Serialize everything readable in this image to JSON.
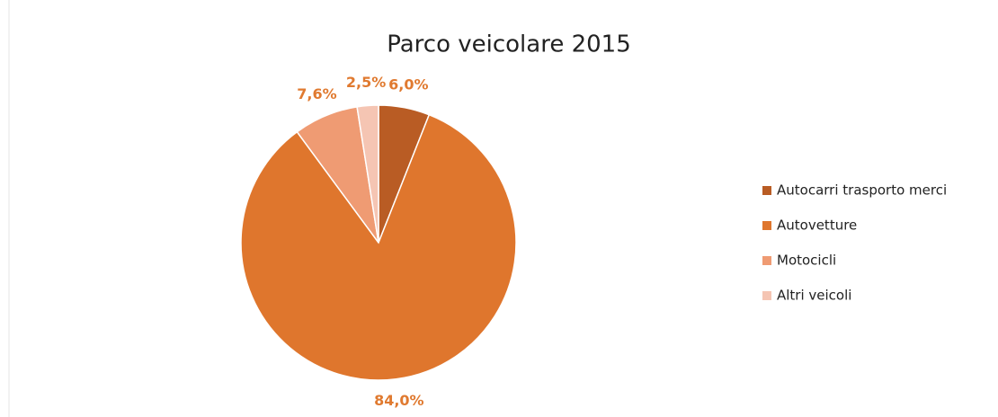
{
  "chart_data": {
    "type": "pie",
    "title": "Parco veicolare 2015",
    "categories": [
      "Autocarri trasporto merci",
      "Autovetture",
      "Motocicli",
      "Altri veicoli"
    ],
    "values": [
      6.0,
      84.0,
      7.6,
      2.5
    ],
    "value_labels": [
      "6,0%",
      "84,0%",
      "7,6%",
      "2,5%"
    ],
    "colors": [
      "#b95c24",
      "#df762d",
      "#ef9b73",
      "#f5c5b3"
    ],
    "legend": "right"
  }
}
